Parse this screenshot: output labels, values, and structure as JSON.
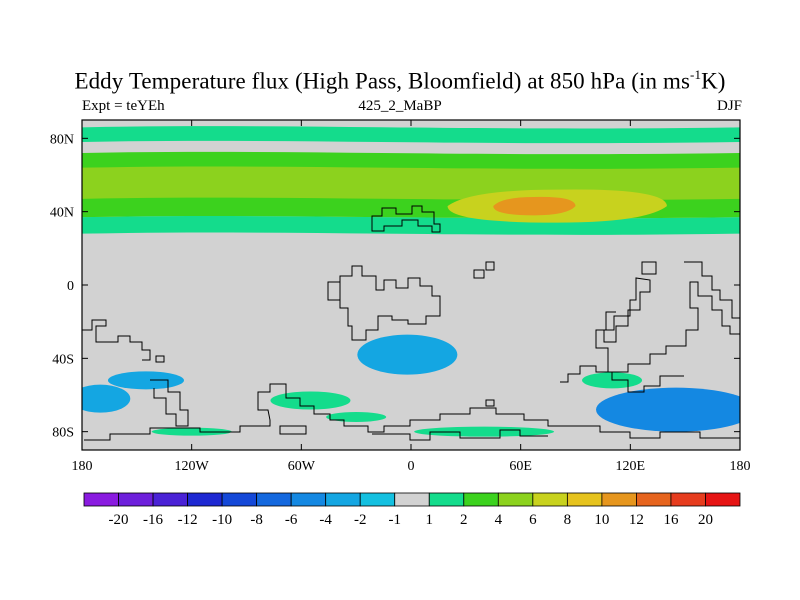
{
  "chart_data": {
    "type": "heatmap",
    "title_main": "Eddy Temperature flux (High Pass, Bloomfield) at 850 hPa (in ms",
    "title_sup": "-1",
    "title_end": "K)",
    "left_label": "Expt = teYEh",
    "center_label": "425_2_MaBP",
    "right_label": "DJF",
    "xlim": [
      -180,
      180
    ],
    "ylim": [
      -90,
      90
    ],
    "x_ticks": [
      {
        "value": -180,
        "label": "180"
      },
      {
        "value": -120,
        "label": "120W"
      },
      {
        "value": -60,
        "label": "60W"
      },
      {
        "value": 0,
        "label": "0"
      },
      {
        "value": 60,
        "label": "60E"
      },
      {
        "value": 120,
        "label": "120E"
      },
      {
        "value": 180,
        "label": "180"
      }
    ],
    "y_ticks": [
      {
        "value": 80,
        "label": "80N"
      },
      {
        "value": 40,
        "label": "40N"
      },
      {
        "value": 0,
        "label": "0"
      },
      {
        "value": -40,
        "label": "40S"
      },
      {
        "value": -80,
        "label": "80S"
      }
    ],
    "colorbar": {
      "labels": [
        "-20",
        "-16",
        "-12",
        "-10",
        "-8",
        "-6",
        "-4",
        "-2",
        "-1",
        "1",
        "2",
        "4",
        "6",
        "8",
        "10",
        "12",
        "16",
        "20"
      ],
      "colors": [
        "#8a1be0",
        "#6d1fdb",
        "#4a22d6",
        "#1e28d2",
        "#1448d8",
        "#1468de",
        "#1488e2",
        "#14a6e2",
        "#14c0e0",
        "#d2d2d2",
        "#14dc8c",
        "#3cd21e",
        "#8cd21e",
        "#c8d21e",
        "#e6c31e",
        "#e6961e",
        "#e6641e",
        "#e63c1e",
        "#e61414"
      ]
    },
    "bands": [
      {
        "lat": [
          78,
          86
        ],
        "lon": [
          -180,
          180
        ],
        "value": 1.5
      },
      {
        "lat": [
          28,
          37
        ],
        "lon": [
          -180,
          180
        ],
        "value": 1.5
      },
      {
        "lat": [
          37,
          72
        ],
        "lon": [
          -180,
          180
        ],
        "value": 3
      },
      {
        "lat": [
          47,
          64
        ],
        "lon": [
          -180,
          180
        ],
        "value": 5
      },
      {
        "lat": [
          34,
          52
        ],
        "lon": [
          20,
          140
        ],
        "value": 7
      },
      {
        "lat": [
          38,
          48
        ],
        "lon": [
          45,
          90
        ],
        "value": 11
      }
    ],
    "southern_features": [
      {
        "name": "south-atlantic-low",
        "lat": -38,
        "lon": -2,
        "value": -3
      },
      {
        "name": "south-pacific-low",
        "lat": -52,
        "lon": -145,
        "value": -3
      },
      {
        "name": "southwest-pacific-low",
        "lat": -62,
        "lon": -170,
        "value": -3
      },
      {
        "name": "australian-sector-low",
        "lat": -68,
        "lon": 145,
        "value": -5
      },
      {
        "name": "indian-ocean-high",
        "lat": -52,
        "lon": 110,
        "value": 1.5
      },
      {
        "name": "south-american-high",
        "lat": -63,
        "lon": -55,
        "value": 1.5
      },
      {
        "name": "antarctic-coast-high",
        "lat": -80,
        "lon": 40,
        "value": 1.5
      }
    ]
  }
}
